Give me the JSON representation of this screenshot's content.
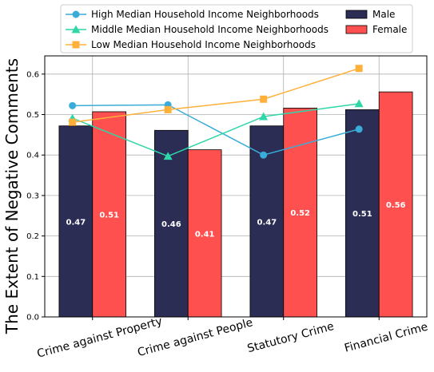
{
  "chart_data": {
    "type": "bar",
    "ylabel": "The Extent of Negative Comments",
    "xlabel": "",
    "ylim": [
      0,
      0.645
    ],
    "yticks": [
      0.0,
      0.1,
      0.2,
      0.3,
      0.4,
      0.5,
      0.6
    ],
    "ytick_labels": [
      "0.0",
      "0.1",
      "0.2",
      "0.3",
      "0.4",
      "0.5",
      "0.6"
    ],
    "grid": true,
    "legend_placement": "top",
    "categories": [
      "Crime against Property",
      "Crime against People",
      "Statutory Crime",
      "Financial Crime"
    ],
    "bar_series": [
      {
        "name": "Male",
        "color": "#2b2d54",
        "values": [
          0.472,
          0.461,
          0.472,
          0.512
        ],
        "data_labels": [
          "0.47",
          "0.46",
          "0.47",
          "0.51"
        ]
      },
      {
        "name": "Female",
        "color": "#ff5050",
        "values": [
          0.507,
          0.413,
          0.516,
          0.556
        ],
        "data_labels": [
          "0.51",
          "0.41",
          "0.52",
          "0.56"
        ]
      }
    ],
    "line_series": [
      {
        "name": "High Median Household Income Neighborhoods",
        "color": "#3aacd9",
        "marker": "circle",
        "values": [
          0.522,
          0.524,
          0.4,
          0.464
        ]
      },
      {
        "name": "Middle Median Household Income Neighborhoods",
        "color": "#2fd6a8",
        "marker": "triangle",
        "values": [
          0.491,
          0.397,
          0.495,
          0.527
        ]
      },
      {
        "name": "Low Median Household Income Neighborhoods",
        "color": "#ffb03b",
        "marker": "square",
        "values": [
          0.481,
          0.512,
          0.538,
          0.614
        ]
      }
    ]
  }
}
